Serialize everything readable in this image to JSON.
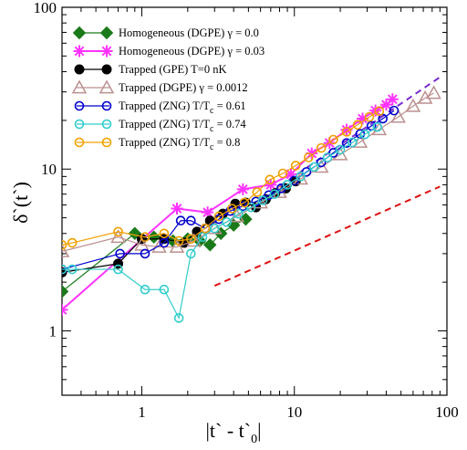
{
  "chart_data": {
    "type": "scatter",
    "xscale": "log",
    "yscale": "log",
    "xlim": [
      0.3,
      100
    ],
    "ylim": [
      0.4,
      100
    ],
    "xlabel": "|t` - t`0|",
    "xlabel_main": "|t` - t`",
    "xlabel_sub": "0",
    "xlabel_tail": "|",
    "ylabel": "δ`(t`)",
    "x_ticks": [
      {
        "value": 1,
        "label": "1"
      },
      {
        "value": 10,
        "label": "10"
      },
      {
        "value": 100,
        "label": "100"
      }
    ],
    "y_ticks": [
      {
        "value": 1,
        "label": "1"
      },
      {
        "value": 10,
        "label": "10"
      },
      {
        "value": 100,
        "label": "100"
      }
    ],
    "grid": false,
    "legend_position": "top-left",
    "series": [
      {
        "name": "Homogeneous (DGPE) γ = 0.0",
        "color": "#1a7a1a",
        "marker": "diamond",
        "x": [
          0.3,
          0.9,
          1.2,
          1.6,
          2.0,
          2.4,
          2.8,
          3.3,
          4.0,
          4.8
        ],
        "y": [
          1.75,
          4.0,
          3.8,
          3.6,
          3.7,
          3.6,
          3.4,
          4.0,
          4.5,
          4.9
        ]
      },
      {
        "name": "Homogeneous (DGPE) γ = 0.03",
        "color": "#ff33ff",
        "marker": "star",
        "x": [
          0.3,
          1.7,
          2.7,
          4.6,
          7.0,
          9.5,
          13,
          17,
          22,
          28,
          34,
          40,
          44
        ],
        "y": [
          1.35,
          5.7,
          5.4,
          7.5,
          8.0,
          9.3,
          12.5,
          14.5,
          17.5,
          20.5,
          23.0,
          25.0,
          27.0
        ]
      },
      {
        "name": "Trapped (GPE) T=0 nK",
        "color": "#000000",
        "marker": "circle-filled",
        "x": [
          0.3,
          0.7,
          1.0,
          1.4,
          1.9,
          2.3,
          2.8,
          3.4,
          4.1,
          4.8,
          5.6,
          6.5,
          7.5,
          8.8,
          10.2
        ],
        "y": [
          2.3,
          2.6,
          3.7,
          3.7,
          3.5,
          4.1,
          4.8,
          5.3,
          6.1,
          6.2,
          5.8,
          6.5,
          7.1,
          7.6,
          8.4
        ]
      },
      {
        "name": "Trapped (DGPE) γ = 0.0012",
        "color": "#bc8f8f",
        "marker": "triangle",
        "x": [
          0.3,
          0.7,
          1.0,
          1.3,
          1.7,
          2.2,
          3.0,
          4.2,
          6.0,
          8.0,
          11,
          15,
          20,
          27,
          36,
          48,
          60,
          72,
          82
        ],
        "y": [
          3.1,
          3.8,
          3.4,
          3.3,
          3.3,
          3.6,
          4.3,
          5.1,
          6.2,
          7.2,
          8.7,
          10.3,
          12.3,
          14.7,
          17.6,
          21.0,
          24.5,
          27.5,
          29.5
        ]
      },
      {
        "name": "Trapped (ZNG) T/Tc = 0.61",
        "color": "#0000cd",
        "marker": "circle-open",
        "x": [
          0.3,
          0.72,
          1.05,
          1.4,
          1.8,
          2.1,
          2.6,
          3.2,
          3.8,
          4.6,
          5.6,
          6.8,
          8.2,
          10,
          12,
          15,
          18,
          22,
          27,
          32,
          38,
          45
        ],
        "y": [
          2.4,
          3.0,
          3.0,
          3.5,
          4.8,
          4.8,
          4.3,
          4.9,
          5.5,
          5.9,
          6.3,
          6.9,
          7.6,
          8.5,
          9.6,
          11.0,
          12.6,
          14.5,
          16.5,
          18.5,
          20.5,
          23.0
        ]
      },
      {
        "name": "Trapped (ZNG) T/Tc = 0.74",
        "color": "#33cccc",
        "marker": "circle-open",
        "x": [
          0.3,
          0.35,
          0.7,
          1.05,
          1.4,
          1.75,
          2.1,
          2.5,
          3.0,
          3.6,
          4.3,
          5.2,
          6.2,
          7.4,
          9,
          11,
          13.5,
          16.5,
          20,
          24,
          29,
          35
        ],
        "y": [
          2.4,
          2.4,
          2.4,
          1.8,
          1.8,
          1.2,
          3.0,
          3.8,
          4.3,
          4.7,
          5.3,
          5.8,
          6.4,
          7.0,
          8.0,
          9.0,
          10.3,
          11.8,
          13.2,
          14.6,
          16.4,
          18.2
        ]
      },
      {
        "name": "Trapped (ZNG) T/Tc = 0.8",
        "color": "#f0a000",
        "marker": "circle-open",
        "x": [
          0.3,
          0.35,
          0.7,
          1.05,
          1.4,
          1.75,
          2.1,
          2.6,
          3.2,
          3.9,
          4.7,
          5.7,
          6.9,
          8.4,
          10.2,
          12.4,
          15,
          18,
          22,
          26,
          31,
          36
        ],
        "y": [
          3.4,
          3.5,
          4.1,
          3.8,
          4.0,
          3.6,
          3.7,
          4.3,
          5.1,
          5.7,
          6.2,
          7.2,
          8.6,
          9.4,
          10.5,
          11.8,
          13.5,
          15.2,
          17.0,
          18.8,
          21.0,
          22.8
        ]
      }
    ],
    "reference_lines": [
      {
        "color": "#dd1111",
        "style": "dashed",
        "x": [
          3.0,
          90
        ],
        "y": [
          1.9,
          7.8
        ]
      },
      {
        "color": "#7a2ad0",
        "style": "dashed",
        "x": [
          7.0,
          90
        ],
        "y": [
          7.2,
          37
        ]
      }
    ]
  }
}
